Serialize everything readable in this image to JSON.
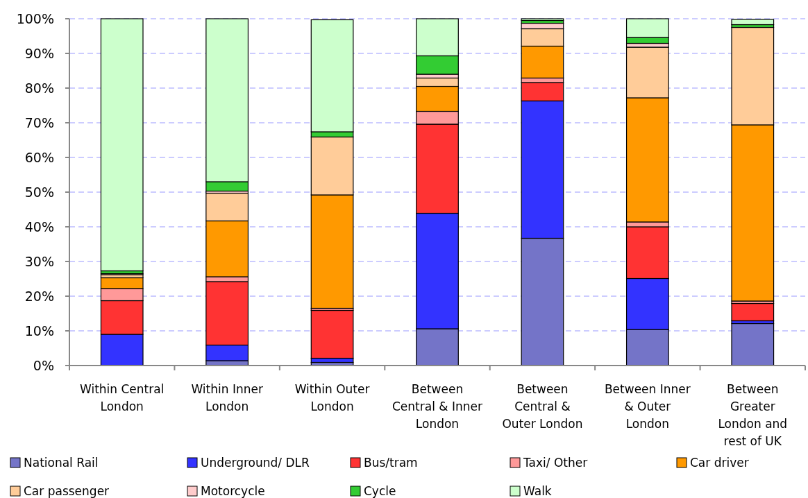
{
  "chart_data": {
    "type": "bar",
    "stacked": true,
    "categories": [
      "Within Central\nLondon",
      "Within Inner\nLondon",
      "Within Outer\nLondon",
      "Between\nCentral & Inner\nLondon",
      "Between\nCentral &\nOuter London",
      "Between Inner\n& Outer\nLondon",
      "Between\nGreater\nLondon and\nrest of UK"
    ],
    "series": [
      {
        "name": "National Rail",
        "color": "#7474c8",
        "values": [
          0,
          1.4,
          0.9,
          10.6,
          36.7,
          10.4,
          12.1
        ]
      },
      {
        "name": "Underground/ DLR",
        "color": "#3333ff",
        "values": [
          9.0,
          4.5,
          1.2,
          33.3,
          39.6,
          14.7,
          0.8
        ]
      },
      {
        "name": "Bus/tram",
        "color": "#ff3333",
        "values": [
          9.7,
          18.3,
          13.8,
          25.7,
          5.3,
          14.9,
          5.0
        ]
      },
      {
        "name": "Taxi/ Other",
        "color": "#ff9999",
        "values": [
          3.5,
          1.4,
          0.6,
          3.7,
          1.3,
          1.4,
          0.7
        ]
      },
      {
        "name": "Car driver",
        "color": "#ff9900",
        "values": [
          3.1,
          16.1,
          32.7,
          7.2,
          9.2,
          35.8,
          50.8
        ]
      },
      {
        "name": "Car passenger",
        "color": "#ffcc99",
        "values": [
          0.9,
          8.0,
          16.7,
          2.4,
          5.0,
          14.6,
          28.1
        ]
      },
      {
        "name": "Motorcycle",
        "color": "#ffcccc",
        "values": [
          0.3,
          0.6,
          null,
          1.1,
          1.6,
          1.1,
          null
        ]
      },
      {
        "name": "Cycle",
        "color": "#33cc33",
        "values": [
          0.8,
          2.7,
          1.5,
          5.3,
          0.8,
          1.7,
          0.8
        ]
      },
      {
        "name": "Walk",
        "color": "#ccffcc",
        "values": [
          72.7,
          47.0,
          32.3,
          10.7,
          0.5,
          5.4,
          1.5
        ]
      }
    ],
    "ylim": [
      0,
      100
    ],
    "yticks": [
      {
        "value": 0,
        "label": "0%"
      },
      {
        "value": 10,
        "label": "10%"
      },
      {
        "value": 20,
        "label": "20%"
      },
      {
        "value": 30,
        "label": "30%"
      },
      {
        "value": 40,
        "label": "40%"
      },
      {
        "value": 50,
        "label": "50%"
      },
      {
        "value": 60,
        "label": "60%"
      },
      {
        "value": 70,
        "label": "70%"
      },
      {
        "value": 80,
        "label": "80%"
      },
      {
        "value": 90,
        "label": "90%"
      },
      {
        "value": 100,
        "label": "100%"
      }
    ],
    "grid": "y",
    "legend": "bottom"
  }
}
